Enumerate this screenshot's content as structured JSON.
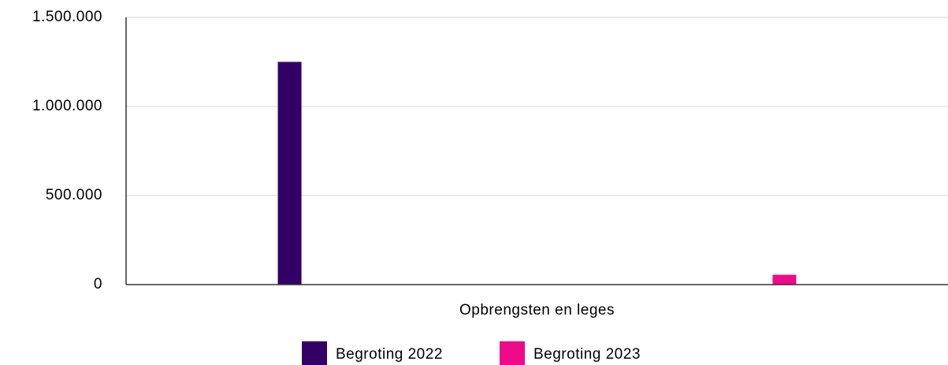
{
  "chart_data": {
    "type": "bar",
    "categories": [
      "Opbrengsten en leges"
    ],
    "series": [
      {
        "name": "Begroting 2022",
        "color": "#330066",
        "values": [
          1250000
        ]
      },
      {
        "name": "Begroting 2023",
        "color": "#ee0a88",
        "values": [
          55000
        ]
      }
    ],
    "ylim": [
      0,
      1500000
    ],
    "yticks": [
      0,
      {
        "value": 500000,
        "label": "500.000"
      },
      {
        "value": 1000000,
        "label": "1.000.000"
      },
      {
        "value": 1500000,
        "label": "1.500.000"
      }
    ],
    "grid": true,
    "legend": "bottom"
  }
}
